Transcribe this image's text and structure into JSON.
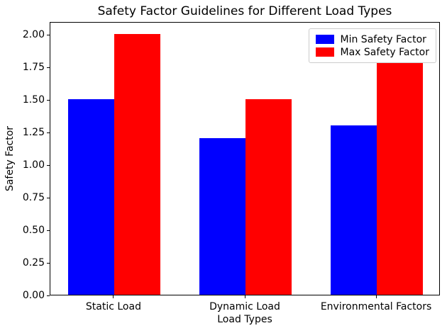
{
  "figure": {
    "background": "#ffffff"
  },
  "chart_data": {
    "type": "bar",
    "title": "Safety Factor Guidelines for Different Load Types",
    "xlabel": "Load Types",
    "ylabel": "Safety Factor",
    "categories": [
      "Static Load",
      "Dynamic Load",
      "Environmental Factors"
    ],
    "series": [
      {
        "name": "Min Safety Factor",
        "color": "#0000ff",
        "values": [
          1.5,
          1.2,
          1.3
        ]
      },
      {
        "name": "Max Safety Factor",
        "color": "#ff0000",
        "values": [
          2.0,
          1.5,
          1.8
        ]
      }
    ],
    "ylim": [
      0,
      2.1
    ],
    "y_ticks": [
      0.0,
      0.25,
      0.5,
      0.75,
      1.0,
      1.25,
      1.5,
      1.75,
      2.0
    ],
    "y_tick_format_decimals": 2,
    "bar_width_units": 0.35,
    "grid": false,
    "legend_position": "upper right"
  }
}
